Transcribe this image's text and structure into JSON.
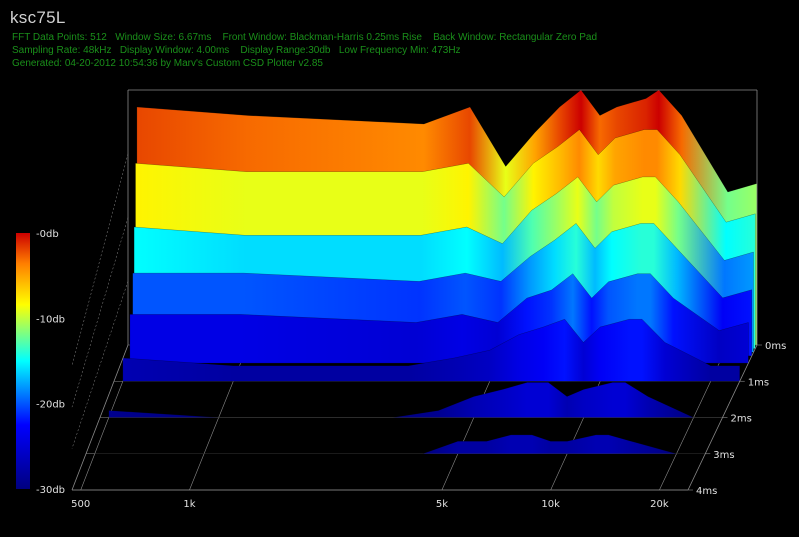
{
  "header": {
    "title": "ksc75L",
    "meta_line1": "FFT Data Points: 512   Window Size: 6.67ms    Front Window: Blackman-Harris 0.25ms Rise    Back Window: Rectangular Zero Pad",
    "meta_line2": "Sampling Rate: 48kHz   Display Window: 4.00ms    Display Range:30db   Low Frequency Min: 473Hz",
    "meta_line3": "Generated: 04-20-2012 10:54:36 by Marv's Custom CSD Plotter v2.85"
  },
  "colors": {
    "background": "#000000",
    "grid": "#8a8a8a",
    "text": "#e0e0e0",
    "meta": "#1a8f1a",
    "scale": [
      "#00007f",
      "#0000ff",
      "#00ffff",
      "#ffff00",
      "#ff7f00",
      "#cc0000"
    ]
  },
  "chart_data": {
    "type": "area",
    "subtype": "cumulative spectral decay waterfall",
    "x_scale": "log",
    "x_ticks": [
      {
        "label": "500",
        "value": 500
      },
      {
        "label": "1k",
        "value": 1000
      },
      {
        "label": "5k",
        "value": 5000
      },
      {
        "label": "10k",
        "value": 10000
      },
      {
        "label": "20k",
        "value": 20000
      }
    ],
    "x_range": [
      473,
      24000
    ],
    "z_ticks": [
      {
        "label": "0ms",
        "value": 0
      },
      {
        "label": "1ms",
        "value": 1
      },
      {
        "label": "2ms",
        "value": 2
      },
      {
        "label": "3ms",
        "value": 3
      },
      {
        "label": "4ms",
        "value": 4
      }
    ],
    "color_scale_ticks": [
      {
        "label": "-0db",
        "value": 0
      },
      {
        "label": "-10db",
        "value": -10
      },
      {
        "label": "-20db",
        "value": -20
      },
      {
        "label": "-30db",
        "value": -30
      }
    ],
    "db_range": [
      -30,
      0
    ],
    "grid": true,
    "series": [
      {
        "time_ms": 0,
        "points": [
          [
            500,
            -2
          ],
          [
            1000,
            -3
          ],
          [
            3000,
            -4
          ],
          [
            4000,
            -2
          ],
          [
            5000,
            -9
          ],
          [
            6000,
            -5
          ],
          [
            7000,
            -2
          ],
          [
            8000,
            0
          ],
          [
            9000,
            -3
          ],
          [
            10000,
            -2
          ],
          [
            12000,
            -1
          ],
          [
            13000,
            0
          ],
          [
            15000,
            -3
          ],
          [
            20000,
            -12
          ],
          [
            24000,
            -11
          ]
        ]
      },
      {
        "time_ms": 0.1,
        "points": [
          [
            500,
            -8
          ],
          [
            1000,
            -9
          ],
          [
            3000,
            -9
          ],
          [
            4000,
            -8
          ],
          [
            5000,
            -12
          ],
          [
            6000,
            -8
          ],
          [
            7000,
            -6
          ],
          [
            8000,
            -4
          ],
          [
            9000,
            -7
          ],
          [
            10000,
            -5
          ],
          [
            12000,
            -4
          ],
          [
            13000,
            -4
          ],
          [
            15000,
            -7
          ],
          [
            20000,
            -15
          ],
          [
            24000,
            -14
          ]
        ]
      },
      {
        "time_ms": 0.2,
        "points": [
          [
            500,
            -15
          ],
          [
            1000,
            -16
          ],
          [
            3000,
            -16
          ],
          [
            4000,
            -15
          ],
          [
            5000,
            -17
          ],
          [
            6000,
            -13
          ],
          [
            7000,
            -11
          ],
          [
            8000,
            -9
          ],
          [
            9000,
            -12
          ],
          [
            10000,
            -10
          ],
          [
            12000,
            -9
          ],
          [
            13000,
            -9
          ],
          [
            15000,
            -12
          ],
          [
            20000,
            -19
          ],
          [
            24000,
            -18
          ]
        ]
      },
      {
        "time_ms": 0.3,
        "points": [
          [
            500,
            -20
          ],
          [
            1000,
            -20
          ],
          [
            3000,
            -21
          ],
          [
            4000,
            -20
          ],
          [
            5000,
            -21
          ],
          [
            6000,
            -18
          ],
          [
            7000,
            -16
          ],
          [
            8000,
            -14
          ],
          [
            9000,
            -17
          ],
          [
            10000,
            -15
          ],
          [
            12000,
            -14
          ],
          [
            13000,
            -14
          ],
          [
            15000,
            -17
          ],
          [
            20000,
            -23
          ],
          [
            24000,
            -22
          ]
        ]
      },
      {
        "time_ms": 0.5,
        "points": [
          [
            500,
            -24
          ],
          [
            1000,
            -24
          ],
          [
            3000,
            -25
          ],
          [
            4000,
            -24
          ],
          [
            5000,
            -25
          ],
          [
            6000,
            -22
          ],
          [
            7000,
            -21
          ],
          [
            8000,
            -19
          ],
          [
            9000,
            -22
          ],
          [
            10000,
            -20
          ],
          [
            12000,
            -19
          ],
          [
            13000,
            -19
          ],
          [
            15000,
            -22
          ],
          [
            20000,
            -26
          ],
          [
            24000,
            -25
          ]
        ]
      },
      {
        "time_ms": 1,
        "points": [
          [
            500,
            -27
          ],
          [
            1000,
            -28
          ],
          [
            3000,
            -28
          ],
          [
            4000,
            -27
          ],
          [
            5000,
            -26
          ],
          [
            6000,
            -24
          ],
          [
            7000,
            -23
          ],
          [
            8000,
            -22
          ],
          [
            9000,
            -25
          ],
          [
            10000,
            -23
          ],
          [
            12000,
            -22
          ],
          [
            13000,
            -22
          ],
          [
            15000,
            -25
          ],
          [
            20000,
            -28
          ],
          [
            24000,
            -28
          ]
        ]
      },
      {
        "time_ms": 2,
        "points": [
          [
            500,
            -29
          ],
          [
            1000,
            -30
          ],
          [
            3000,
            -30
          ],
          [
            4000,
            -29
          ],
          [
            5000,
            -27
          ],
          [
            6000,
            -26
          ],
          [
            7000,
            -25
          ],
          [
            8000,
            -25
          ],
          [
            9000,
            -27
          ],
          [
            10000,
            -26
          ],
          [
            12000,
            -25
          ],
          [
            13000,
            -25
          ],
          [
            15000,
            -27
          ],
          [
            20000,
            -30
          ],
          [
            24000,
            -30
          ]
        ]
      },
      {
        "time_ms": 3,
        "points": [
          [
            500,
            -30
          ],
          [
            1000,
            -30
          ],
          [
            3000,
            -30
          ],
          [
            4000,
            -30
          ],
          [
            5000,
            -28
          ],
          [
            6000,
            -28
          ],
          [
            7000,
            -27
          ],
          [
            8000,
            -27
          ],
          [
            9000,
            -28
          ],
          [
            10000,
            -28
          ],
          [
            12000,
            -27
          ],
          [
            13000,
            -27
          ],
          [
            15000,
            -28
          ],
          [
            20000,
            -30
          ],
          [
            24000,
            -30
          ]
        ]
      }
    ]
  }
}
